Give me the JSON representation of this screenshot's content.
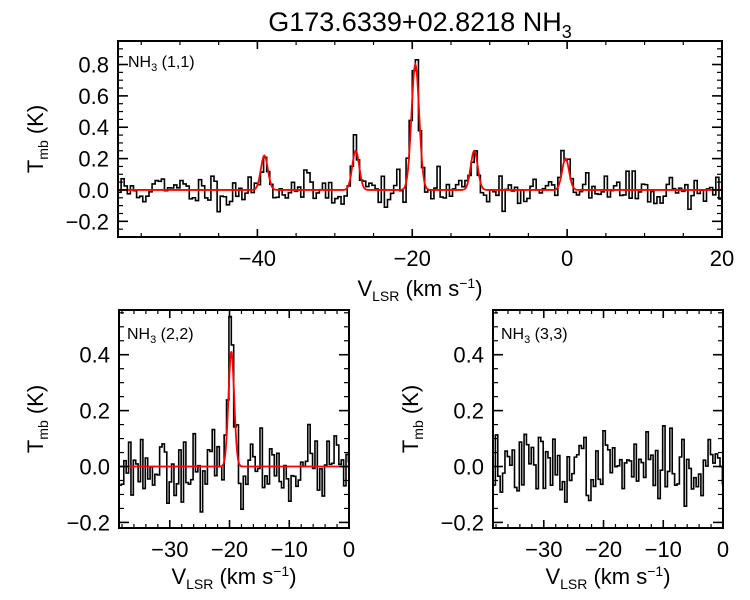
{
  "title": {
    "main": "G173.6339+02.8218 NH",
    "sub": "3"
  },
  "colors": {
    "data": "#000000",
    "fit": "#ff0000",
    "frame": "#000000"
  },
  "axis_labels": {
    "y_main": "T",
    "y_sub": "mb",
    "y_tail": " (K)",
    "x_main": "V",
    "x_sub": "LSR",
    "x_tail1": " (km s",
    "x_sup": "−1",
    "x_tail2": ")"
  },
  "chart_data": [
    {
      "type": "line",
      "panel": "top",
      "label": {
        "main": "NH",
        "sub": "3",
        "tail": " (1,1)"
      },
      "xlim": [
        -58,
        20
      ],
      "ylim": [
        -0.3,
        0.95
      ],
      "xticks": [
        -40,
        -20,
        0,
        20
      ],
      "xtick_labels": [
        "−40",
        "−20",
        "0",
        "20"
      ],
      "yticks": [
        -0.2,
        0,
        0.2,
        0.4,
        0.6,
        0.8
      ],
      "ytick_labels": [
        "−0.2",
        "0.0",
        "0.2",
        "0.4",
        "0.6",
        "0.8"
      ],
      "series": [
        {
          "role": "spectrum",
          "style": "step",
          "x_start": -58,
          "x_step": 0.4,
          "noise": 0.055,
          "seed": 11,
          "peaks": [
            {
              "center": -39.1,
              "amp": 0.24,
              "sigma": 0.45
            },
            {
              "center": -27.3,
              "amp": 0.28,
              "sigma": 0.45
            },
            {
              "center": -19.6,
              "amp": 0.84,
              "sigma": 0.5
            },
            {
              "center": -12.0,
              "amp": 0.27,
              "sigma": 0.45
            },
            {
              "center": -0.2,
              "amp": 0.22,
              "sigma": 0.45
            }
          ]
        },
        {
          "role": "fit",
          "style": "line",
          "peaks": [
            {
              "center": -39.1,
              "amp": 0.22,
              "sigma": 0.45
            },
            {
              "center": -27.3,
              "amp": 0.25,
              "sigma": 0.45
            },
            {
              "center": -19.6,
              "amp": 0.8,
              "sigma": 0.5
            },
            {
              "center": -12.0,
              "amp": 0.25,
              "sigma": 0.45
            },
            {
              "center": -0.2,
              "amp": 0.2,
              "sigma": 0.45
            }
          ]
        }
      ]
    },
    {
      "type": "line",
      "panel": "bottom-left",
      "label": {
        "main": "NH",
        "sub": "3",
        "tail": " (2,2)"
      },
      "xlim": [
        -38.5,
        0
      ],
      "ylim": [
        -0.22,
        0.56
      ],
      "xticks": [
        -30,
        -20,
        -10,
        0
      ],
      "xtick_labels": [
        "−30",
        "−20",
        "−10",
        "0"
      ],
      "yticks": [
        -0.2,
        0,
        0.2,
        0.4
      ],
      "ytick_labels": [
        "−0.2",
        "0.0",
        "0.2",
        "0.4"
      ],
      "series": [
        {
          "role": "spectrum",
          "style": "step",
          "x_start": -38.5,
          "x_step": 0.4,
          "noise": 0.06,
          "seed": 23,
          "peaks": [
            {
              "center": -19.7,
              "amp": 0.44,
              "sigma": 0.45
            }
          ]
        },
        {
          "role": "fit",
          "style": "line",
          "peaks": [
            {
              "center": -19.7,
              "amp": 0.41,
              "sigma": 0.48
            }
          ]
        }
      ]
    },
    {
      "type": "line",
      "panel": "bottom-right",
      "label": {
        "main": "NH",
        "sub": "3",
        "tail": " (3,3)"
      },
      "xlim": [
        -38.5,
        0
      ],
      "ylim": [
        -0.22,
        0.56
      ],
      "xticks": [
        -30,
        -20,
        -10,
        0
      ],
      "xtick_labels": [
        "−30",
        "−20",
        "−10",
        "0"
      ],
      "yticks": [
        -0.2,
        0,
        0.2,
        0.4
      ],
      "ytick_labels": [
        "−0.2",
        "0.0",
        "0.2",
        "0.4"
      ],
      "series": [
        {
          "role": "spectrum",
          "style": "step",
          "x_start": -38.5,
          "x_step": 0.4,
          "noise": 0.06,
          "seed": 37,
          "peaks": []
        }
      ]
    }
  ]
}
